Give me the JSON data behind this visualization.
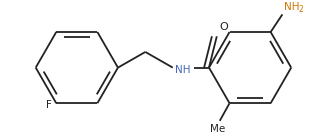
{
  "bg_color": "#ffffff",
  "line_color": "#222222",
  "label_color_NH": "#4466bb",
  "label_color_NH2": "#cc7700",
  "label_color_O": "#222222",
  "label_color_F": "#222222",
  "label_color_Me": "#222222",
  "figsize": [
    3.23,
    1.36
  ],
  "dpi": 100,
  "lw": 1.3,
  "F_label": "F",
  "NH_label": "NH",
  "O_label": "O",
  "NH2_label": "NH",
  "NH2_sub": "2",
  "Me_label": "Me"
}
